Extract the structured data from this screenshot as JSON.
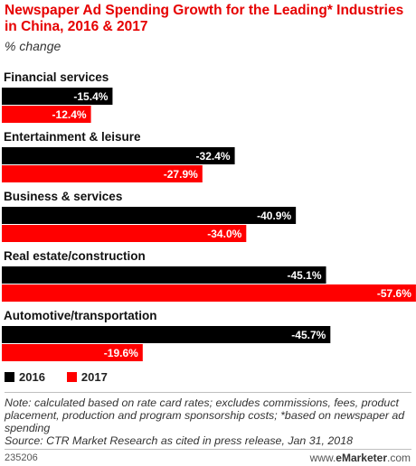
{
  "header": {
    "title": "Newspaper Ad Spending Growth for the Leading* Industries in China, 2016 & 2017",
    "subtitle": "% change"
  },
  "chart_data": {
    "type": "bar",
    "orientation": "horizontal",
    "title": "Newspaper Ad Spending Growth for the Leading* Industries in China, 2016 & 2017",
    "subtitle": "% change",
    "categories": [
      "Financial services",
      "Entertainment & leisure",
      "Business & services",
      "Real estate/construction",
      "Automotive/transportation"
    ],
    "series": [
      {
        "name": "2016",
        "color": "#000000",
        "values": [
          -15.4,
          -32.4,
          -40.9,
          -45.1,
          -45.7
        ],
        "labels": [
          "-15.4%",
          "-32.4%",
          "-40.9%",
          "-45.1%",
          "-45.7%"
        ]
      },
      {
        "name": "2017",
        "color": "#ff0000",
        "values": [
          -12.4,
          -27.9,
          -34.0,
          -57.6,
          -19.6
        ],
        "labels": [
          "-12.4%",
          "-27.9%",
          "-34.0%",
          "-57.6%",
          "-19.6%"
        ]
      }
    ],
    "legend_position": "bottom-left",
    "grid": false
  },
  "legend": [
    {
      "label": "2016",
      "color": "#000000"
    },
    {
      "label": "2017",
      "color": "#ff0000"
    }
  ],
  "footer": {
    "note": "Note: calculated based on rate card rates; excludes commissions, fees, product placement, production and program sponsorship costs; *based on newspaper ad spending",
    "source": "Source: CTR Market Research as cited in press release, Jan 31, 2018",
    "chart_id": "235206",
    "brand_prefix": "www.",
    "brand_name": "eMarketer",
    "brand_suffix": ".com"
  }
}
